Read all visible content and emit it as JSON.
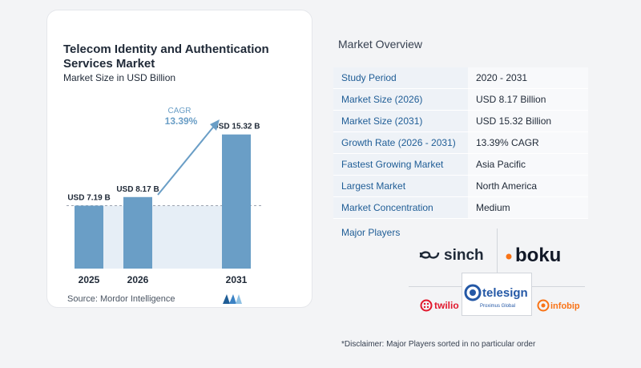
{
  "chart_data": {
    "type": "bar",
    "title": "Telecom Identity and Authentication Services Market",
    "subtitle": "Market Size in USD Billion",
    "categories": [
      "2025",
      "2026",
      "2031"
    ],
    "values": [
      7.19,
      8.17,
      15.32
    ],
    "data_labels": [
      "USD 7.19 B",
      "USD 8.17 B",
      "USD 15.32 B"
    ],
    "ylim": [
      0,
      16.3
    ],
    "cagr_label": "CAGR",
    "cagr_value": "13.39%",
    "source": "Source:  Mordor Intelligence",
    "colors": {
      "bar": "#6a9ec6",
      "cagr": "#6a9ec6",
      "band": "#e6eef6"
    }
  },
  "overview": {
    "title": "Market Overview",
    "rows": [
      {
        "key": "Study Period",
        "value": "2020 - 2031"
      },
      {
        "key": "Market Size (2026)",
        "value": "USD 8.17 Billion"
      },
      {
        "key": "Market Size (2031)",
        "value": "USD 15.32 Billion"
      },
      {
        "key": "Growth Rate (2026 - 2031)",
        "value": "13.39% CAGR"
      },
      {
        "key": "Fastest Growing Market",
        "value": "Asia Pacific"
      },
      {
        "key": "Largest Market",
        "value": "North America"
      },
      {
        "key": "Market Concentration",
        "value": "Medium"
      }
    ]
  },
  "players": {
    "label": "Major Players",
    "logos": [
      "sinch",
      "boku",
      "twilio",
      "telesign",
      "Proximus Global",
      "infobip"
    ]
  },
  "disclaimer": "*Disclaimer: Major Players sorted in no particular order"
}
